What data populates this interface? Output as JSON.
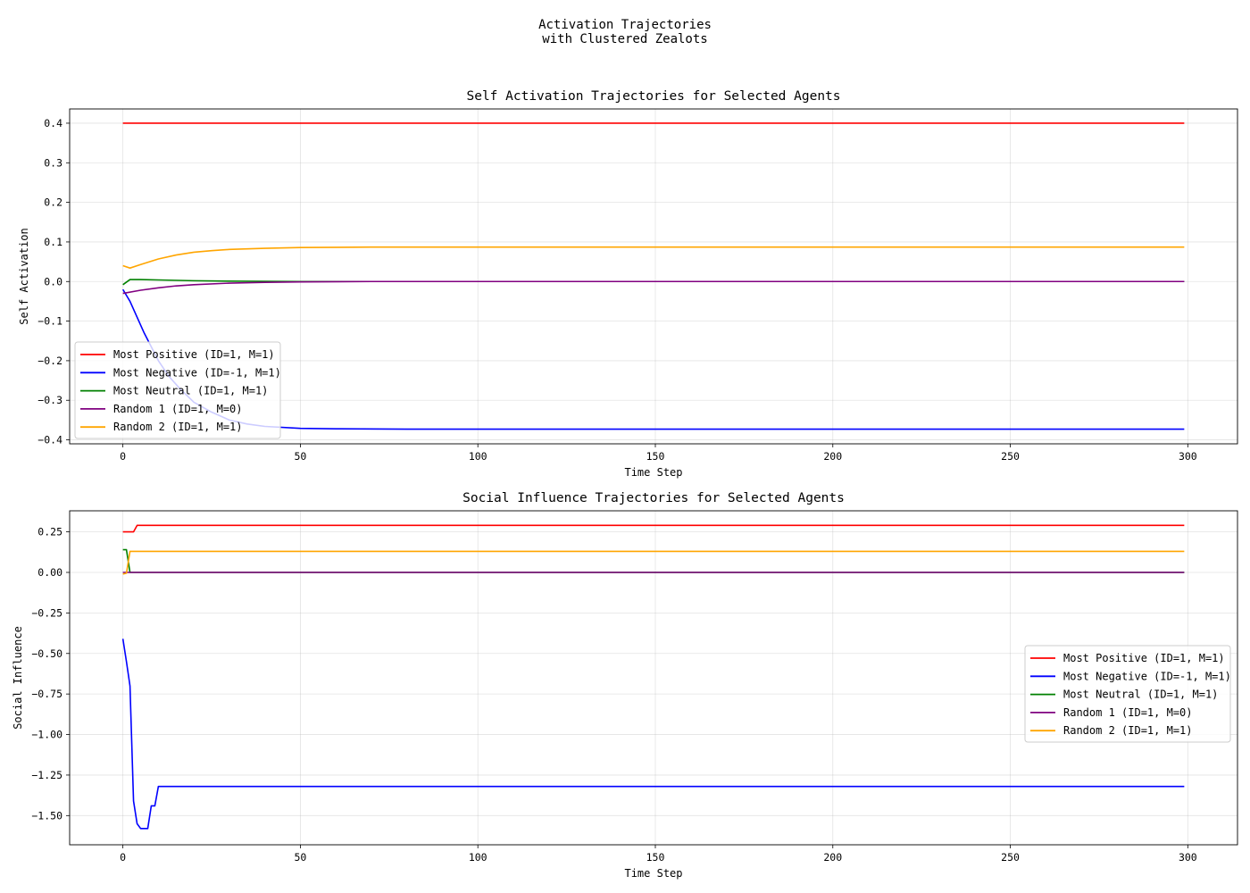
{
  "figure": {
    "title_line1": "Activation Trajectories",
    "title_line2": "with Clustered Zealots"
  },
  "chart_data": [
    {
      "type": "line",
      "title": "Self Activation Trajectories for Selected Agents",
      "xlabel": "Time Step",
      "ylabel": "Self Activation",
      "xlim": [
        -15,
        314
      ],
      "ylim": [
        -0.41,
        0.436
      ],
      "xticks": [
        0,
        50,
        100,
        150,
        200,
        250,
        300
      ],
      "yticks": [
        -0.4,
        -0.3,
        -0.2,
        -0.1,
        0.0,
        0.1,
        0.2,
        0.3,
        0.4
      ],
      "ytick_labels": [
        "−0.4",
        "−0.3",
        "−0.2",
        "−0.1",
        "0.0",
        "0.1",
        "0.2",
        "0.3",
        "0.4"
      ],
      "grid": true,
      "legend_position": "lower-left",
      "series": [
        {
          "name": "Most Positive (ID=1, M=1)",
          "color": "#ff0000",
          "points": [
            [
              0,
              0.4
            ],
            [
              299,
              0.4
            ]
          ]
        },
        {
          "name": "Most Negative (ID=-1, M=1)",
          "color": "#0000ff",
          "points": [
            [
              0,
              -0.02
            ],
            [
              2,
              -0.05
            ],
            [
              4,
              -0.09
            ],
            [
              6,
              -0.13
            ],
            [
              8,
              -0.165
            ],
            [
              10,
              -0.2
            ],
            [
              13,
              -0.24
            ],
            [
              16,
              -0.27
            ],
            [
              20,
              -0.305
            ],
            [
              25,
              -0.33
            ],
            [
              30,
              -0.35
            ],
            [
              35,
              -0.36
            ],
            [
              40,
              -0.366
            ],
            [
              50,
              -0.371
            ],
            [
              60,
              -0.372
            ],
            [
              80,
              -0.373
            ],
            [
              299,
              -0.373
            ]
          ]
        },
        {
          "name": "Most Neutral (ID=1, M=1)",
          "color": "#008000",
          "points": [
            [
              0,
              -0.008
            ],
            [
              2,
              0.005
            ],
            [
              5,
              0.005
            ],
            [
              10,
              0.004
            ],
            [
              20,
              0.002
            ],
            [
              30,
              0.001
            ],
            [
              50,
              0.0
            ],
            [
              299,
              0.0
            ]
          ]
        },
        {
          "name": "Random 1 (ID=1, M=0)",
          "color": "#800080",
          "points": [
            [
              0,
              -0.03
            ],
            [
              5,
              -0.022
            ],
            [
              10,
              -0.016
            ],
            [
              15,
              -0.011
            ],
            [
              20,
              -0.008
            ],
            [
              30,
              -0.004
            ],
            [
              40,
              -0.002
            ],
            [
              50,
              -0.001
            ],
            [
              70,
              0.0
            ],
            [
              299,
              0.0
            ]
          ]
        },
        {
          "name": "Random 2 (ID=1, M=1)",
          "color": "#ffa500",
          "points": [
            [
              0,
              0.04
            ],
            [
              2,
              0.034
            ],
            [
              5,
              0.043
            ],
            [
              10,
              0.057
            ],
            [
              15,
              0.067
            ],
            [
              20,
              0.074
            ],
            [
              25,
              0.078
            ],
            [
              30,
              0.081
            ],
            [
              40,
              0.084
            ],
            [
              50,
              0.086
            ],
            [
              70,
              0.087
            ],
            [
              299,
              0.087
            ]
          ]
        }
      ]
    },
    {
      "type": "line",
      "title": "Social Influence Trajectories for Selected Agents",
      "xlabel": "Time Step",
      "ylabel": "Social Influence",
      "xlim": [
        -15,
        314
      ],
      "ylim": [
        -1.68,
        0.38
      ],
      "xticks": [
        0,
        50,
        100,
        150,
        200,
        250,
        300
      ],
      "yticks": [
        -1.5,
        -1.25,
        -1.0,
        -0.75,
        -0.5,
        -0.25,
        0.0,
        0.25
      ],
      "ytick_labels": [
        "−1.50",
        "−1.25",
        "−1.00",
        "−0.75",
        "−0.50",
        "−0.25",
        "0.00",
        "0.25"
      ],
      "grid": true,
      "legend_position": "center-right",
      "series": [
        {
          "name": "Most Positive (ID=1, M=1)",
          "color": "#ff0000",
          "points": [
            [
              0,
              0.25
            ],
            [
              3,
              0.25
            ],
            [
              4,
              0.29
            ],
            [
              299,
              0.29
            ]
          ]
        },
        {
          "name": "Most Negative (ID=-1, M=1)",
          "color": "#0000ff",
          "points": [
            [
              0,
              -0.41
            ],
            [
              1,
              -0.55
            ],
            [
              2,
              -0.7
            ],
            [
              3,
              -1.41
            ],
            [
              4,
              -1.55
            ],
            [
              5,
              -1.58
            ],
            [
              6,
              -1.58
            ],
            [
              7,
              -1.58
            ],
            [
              8,
              -1.44
            ],
            [
              9,
              -1.44
            ],
            [
              10,
              -1.32
            ],
            [
              299,
              -1.32
            ]
          ]
        },
        {
          "name": "Most Neutral (ID=1, M=1)",
          "color": "#008000",
          "points": [
            [
              0,
              0.14
            ],
            [
              1,
              0.14
            ],
            [
              2,
              0.0
            ],
            [
              299,
              0.0
            ]
          ]
        },
        {
          "name": "Random 1 (ID=1, M=0)",
          "color": "#800080",
          "points": [
            [
              0,
              0.0
            ],
            [
              299,
              0.0
            ]
          ]
        },
        {
          "name": "Random 2 (ID=1, M=1)",
          "color": "#ffa500",
          "points": [
            [
              0,
              -0.01
            ],
            [
              1,
              -0.005
            ],
            [
              2,
              0.13
            ],
            [
              299,
              0.13
            ]
          ]
        }
      ]
    }
  ]
}
